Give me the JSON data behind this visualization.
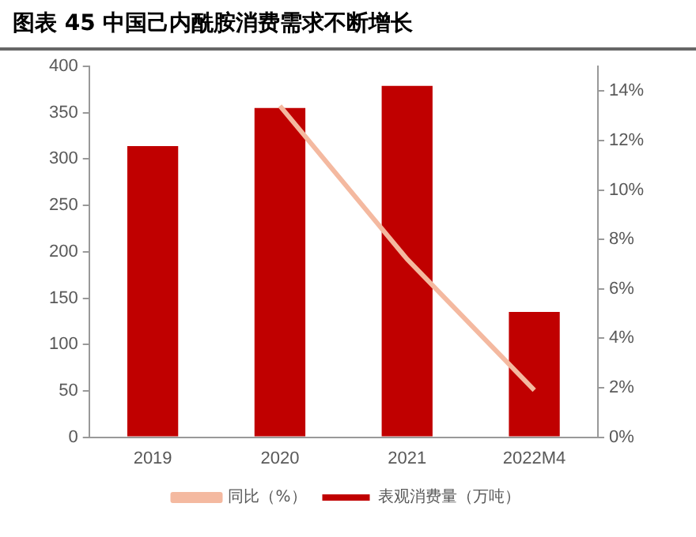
{
  "chart_data": {
    "type": "bar",
    "title": "图表 45 中国己内酰胺消费需求不断增长",
    "categories": [
      "2019",
      "2020",
      "2021",
      "2022M4"
    ],
    "series": [
      {
        "name": "表观消费量（万吨）",
        "color": "#c00000",
        "values": [
          314,
          355,
          379,
          135
        ]
      },
      {
        "name": "同比（%）",
        "type": "line",
        "axis": "y2",
        "color": "#f4b9a0",
        "values": [
          null,
          13.4,
          7.2,
          1.9
        ]
      }
    ],
    "ylim": [
      0,
      400
    ],
    "yticks": [
      0,
      50,
      100,
      150,
      200,
      250,
      300,
      350,
      400
    ],
    "y2lim": [
      0,
      15
    ],
    "y2ticks": [
      {
        "value": 0,
        "label": "0%"
      },
      {
        "value": 2,
        "label": "2%"
      },
      {
        "value": 4,
        "label": "4%"
      },
      {
        "value": 6,
        "label": "6%"
      },
      {
        "value": 8,
        "label": "8%"
      },
      {
        "value": 10,
        "label": "10%"
      },
      {
        "value": 12,
        "label": "12%"
      },
      {
        "value": 14,
        "label": "14%"
      }
    ],
    "grid": false,
    "legend": "bottom",
    "marker": "none"
  }
}
